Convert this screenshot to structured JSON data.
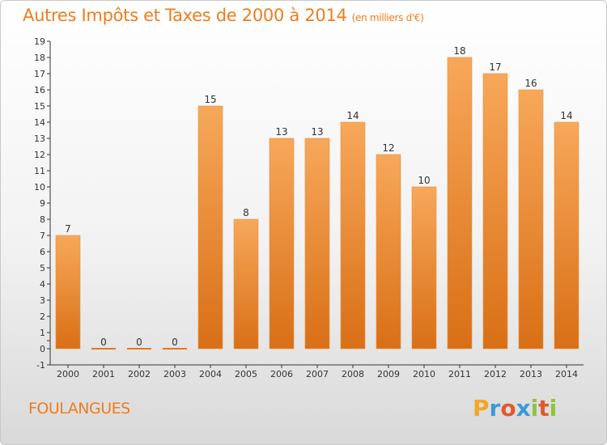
{
  "title": {
    "main": "Autres Impôts et Taxes de 2000 à 2014",
    "unit": "(en milliers d'€)"
  },
  "commune": "FOULANGUES",
  "logo": "Proxiti",
  "colors": {
    "accent": "#f07c1c",
    "bar_top": "#f7a85a",
    "bar_bottom": "#d96f16",
    "axis": "#333333"
  },
  "chart_data": {
    "type": "bar",
    "categories": [
      "2000",
      "2001",
      "2002",
      "2003",
      "2004",
      "2005",
      "2006",
      "2007",
      "2008",
      "2009",
      "2010",
      "2011",
      "2012",
      "2013",
      "2014"
    ],
    "values": [
      7,
      0,
      0,
      0,
      15,
      8,
      13,
      13,
      14,
      12,
      10,
      18,
      17,
      16,
      14
    ],
    "yticks": [
      "-1",
      "0",
      "",
      "1",
      "2",
      "3",
      "4",
      "5",
      "6",
      "7",
      "8",
      "9",
      "10",
      "11",
      "12",
      "13",
      "14",
      "15",
      "16",
      "17",
      "18",
      "19"
    ],
    "ylim": [
      -1,
      19
    ],
    "grid": false,
    "legend": "none"
  }
}
